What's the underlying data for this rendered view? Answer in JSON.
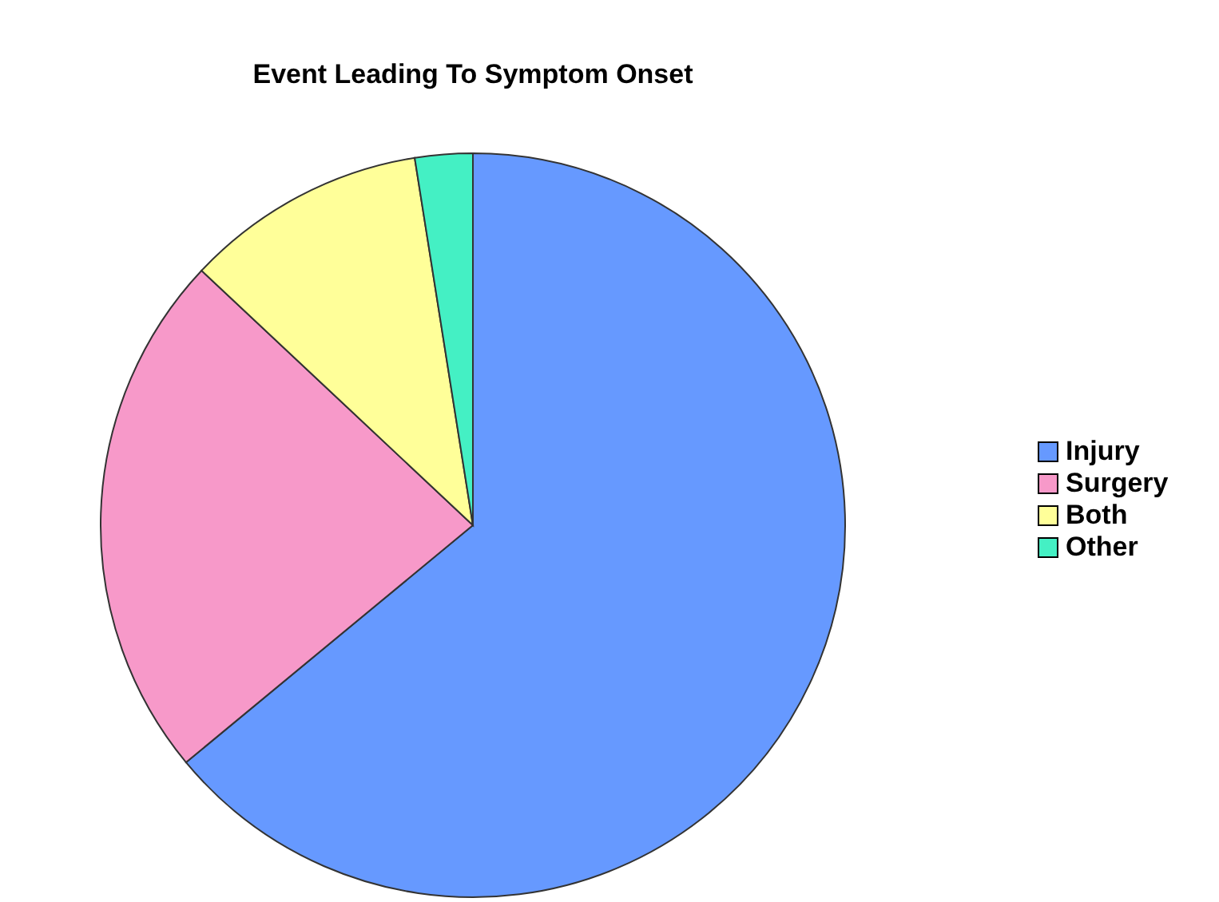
{
  "chart_data": {
    "type": "pie",
    "title": "Event Leading To Symptom Onset",
    "categories": [
      "Injury",
      "Surgery",
      "Both",
      "Other"
    ],
    "values": [
      64,
      23,
      10.5,
      2.5
    ],
    "colors": [
      "#6699ff",
      "#f799c9",
      "#ffff99",
      "#44f0c4"
    ],
    "legend": "right"
  }
}
